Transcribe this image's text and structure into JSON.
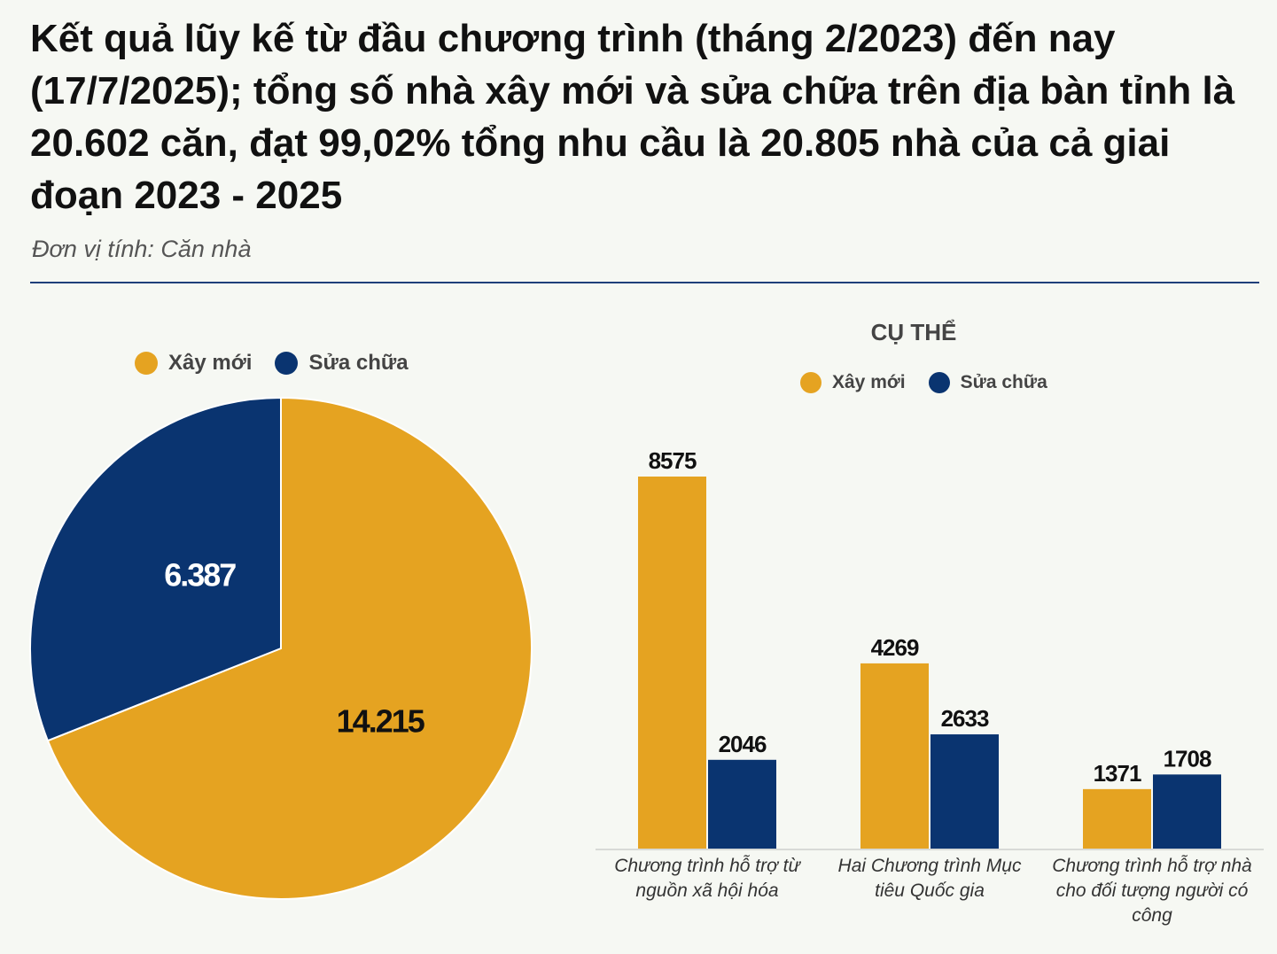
{
  "title": "Kết quả lũy kế từ đầu chương trình (tháng 2/2023) đến nay (17/7/2025); tổng số nhà xây mới và sửa chữa trên địa bàn tỉnh là 20.602 căn, đạt 99,02% tổng nhu cầu là 20.805 nhà của cả giai đoạn 2023 - 2025",
  "unit_note": "Đơn vị tính: Căn nhà",
  "colors": {
    "xay_moi": "#e5a321",
    "sua_chua": "#0a3470"
  },
  "pie_legend": [
    "Xây mới",
    "Sửa chữa"
  ],
  "bar_legend": [
    "Xây mới",
    "Sửa chữa"
  ],
  "bar_title": "CỤ THỂ",
  "chart_data": [
    {
      "type": "pie",
      "title": "",
      "slices": [
        {
          "name": "Xây mới",
          "value": 14215,
          "label": "14.215"
        },
        {
          "name": "Sửa chữa",
          "value": 6387,
          "label": "6.387"
        }
      ]
    },
    {
      "type": "bar",
      "title": "CỤ THỂ",
      "categories": [
        "Chương trình hỗ trợ từ nguồn xã hội hóa",
        "Hai Chương trình Mục tiêu Quốc gia",
        "Chương trình hỗ trợ nhà cho đối tượng người có công"
      ],
      "series": [
        {
          "name": "Xây mới",
          "values": [
            8575,
            4269,
            1371
          ]
        },
        {
          "name": "Sửa chữa",
          "values": [
            2046,
            2633,
            1708
          ]
        }
      ],
      "ylim": [
        0,
        9500
      ],
      "xlabel": "",
      "ylabel": ""
    }
  ]
}
